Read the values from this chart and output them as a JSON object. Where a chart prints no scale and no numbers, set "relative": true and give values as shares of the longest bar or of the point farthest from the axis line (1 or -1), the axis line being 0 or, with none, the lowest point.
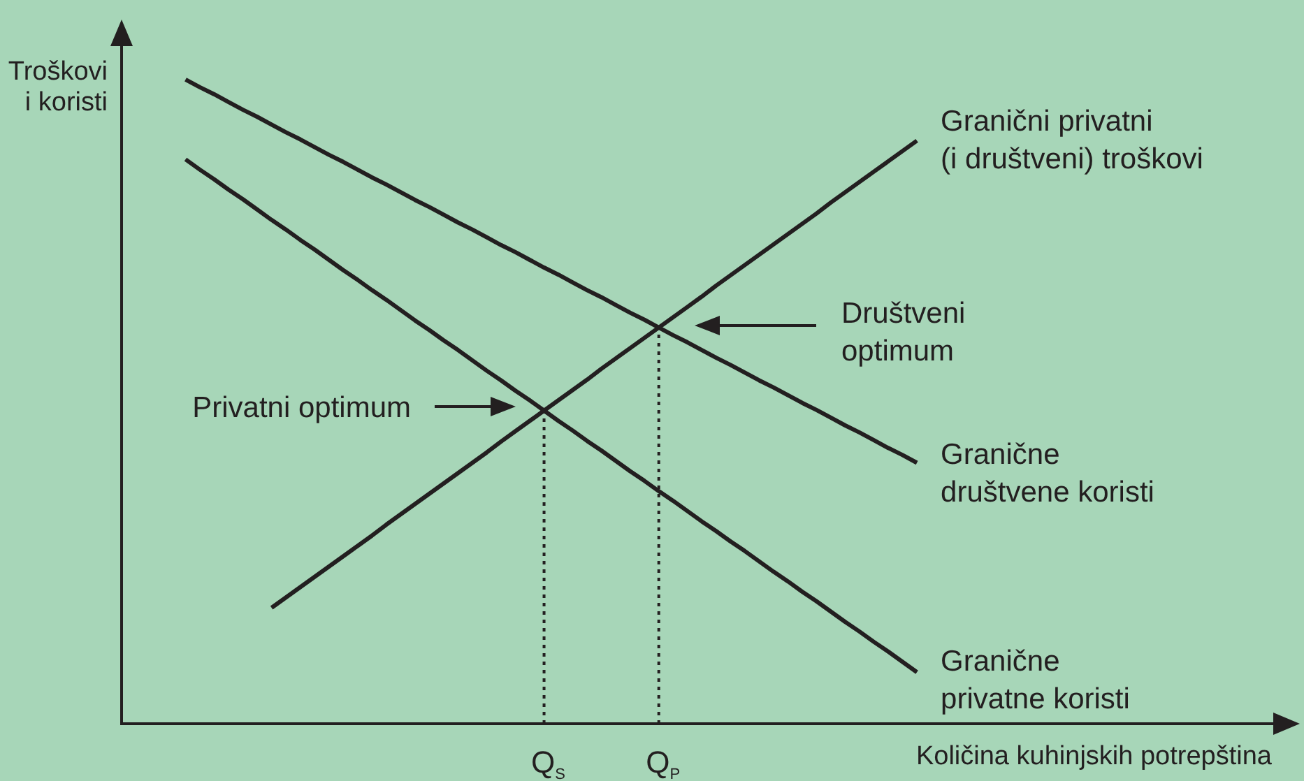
{
  "chart_data": {
    "type": "line",
    "relative": true,
    "xlabel": "Količina kuhinjskih potrepština",
    "ylabel": "Troškovi i koristi",
    "categories": [
      null,
      null,
      null,
      null,
      null,
      null,
      null,
      null,
      null,
      null,
      null,
      null,
      null,
      null,
      null,
      null,
      null,
      null,
      null,
      null,
      null,
      null,
      null,
      null,
      null,
      "Q$_{S}$",
      null,
      null,
      null,
      null,
      null,
      null,
      null,
      "Q$_{P}$",
      null,
      null,
      null,
      null,
      null,
      null,
      null,
      null,
      null,
      null,
      null,
      null,
      null,
      null,
      null,
      null,
      null,
      null
    ],
    "series": [
      {
        "name": "Granični privatni (i društveni) troškovi",
        "color": "#231f20",
        "values": [
          null,
          null,
          null,
          null,
          null,
          null,
          0.18,
          0.196,
          0.212,
          0.228,
          0.244,
          0.26,
          0.276,
          0.292,
          0.309,
          0.325,
          0.341,
          0.357,
          0.373,
          0.389,
          0.405,
          0.421,
          0.438,
          0.454,
          0.47,
          0.486,
          0.502,
          0.518,
          0.534,
          0.551,
          0.567,
          0.583,
          0.599,
          0.615,
          0.631,
          0.647,
          0.663,
          0.68,
          0.696,
          0.712,
          0.728,
          0.744,
          0.76,
          0.776,
          0.792,
          0.809,
          0.825,
          0.841,
          0.857,
          0.873,
          0.889,
          0.905
        ]
      },
      {
        "name": "Granične društvene koristi",
        "color": "#231f20",
        "values": [
          1.0,
          0.988,
          0.977,
          0.965,
          0.953,
          0.942,
          0.93,
          0.918,
          0.907,
          0.895,
          0.883,
          0.872,
          0.86,
          0.848,
          0.837,
          0.825,
          0.813,
          0.802,
          0.79,
          0.778,
          0.767,
          0.755,
          0.743,
          0.732,
          0.72,
          0.708,
          0.697,
          0.685,
          0.673,
          0.662,
          0.65,
          0.638,
          0.627,
          0.615,
          0.603,
          0.592,
          0.58,
          0.568,
          0.557,
          0.545,
          0.533,
          0.522,
          0.51,
          0.498,
          0.487,
          0.475,
          0.463,
          0.452,
          0.44,
          0.428,
          0.417,
          0.405
        ]
      },
      {
        "name": "Granične privatne koristi",
        "color": "#231f20",
        "values": [
          0.876,
          0.86,
          0.845,
          0.829,
          0.814,
          0.798,
          0.782,
          0.767,
          0.751,
          0.736,
          0.72,
          0.704,
          0.689,
          0.673,
          0.658,
          0.642,
          0.626,
          0.611,
          0.595,
          0.58,
          0.564,
          0.548,
          0.533,
          0.517,
          0.502,
          0.486,
          0.47,
          0.455,
          0.439,
          0.424,
          0.408,
          0.392,
          0.377,
          0.361,
          0.346,
          0.33,
          0.314,
          0.299,
          0.283,
          0.268,
          0.252,
          0.236,
          0.221,
          0.205,
          0.19,
          0.174,
          0.158,
          0.143,
          0.127,
          0.112,
          0.096,
          0.08
        ]
      },
      {
        "color": "#231f20",
        "x": [
          "Q$_{S}$",
          "Q$_{S}$"
        ],
        "values": [
          0,
          0.486
        ],
        "line_style": "dotted"
      },
      {
        "color": "#231f20",
        "x": [
          "Q$_{P}$",
          "Q$_{P}$"
        ],
        "values": [
          0,
          0.615
        ],
        "line_style": "dotted"
      }
    ],
    "annotations": [
      "Privatni optimum",
      "Društveni optimum"
    ],
    "line_style": "solid",
    "marker": "none",
    "grid": false,
    "legend": false
  }
}
